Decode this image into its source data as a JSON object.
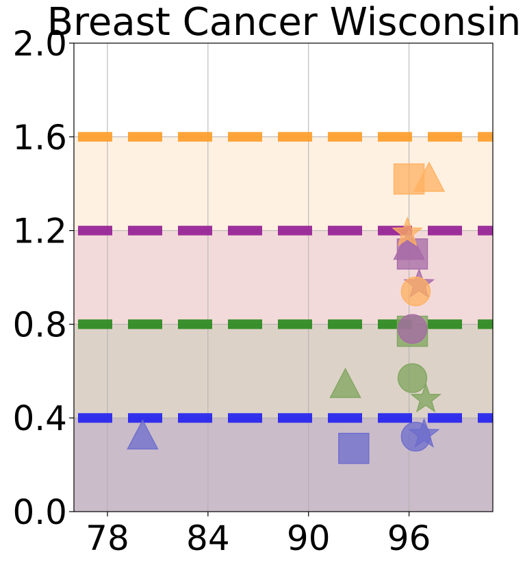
{
  "chart_data": {
    "type": "scatter",
    "title": "Breast Cancer Wisconsin",
    "xlabel": "",
    "ylabel": "",
    "xlim": [
      76,
      101
    ],
    "ylim": [
      0.0,
      2.0
    ],
    "x_ticks": [
      78,
      84,
      90,
      96
    ],
    "x_tick_labels": [
      "78",
      "84",
      "90",
      "96"
    ],
    "y_ticks": [
      0.0,
      0.4,
      0.8,
      1.2,
      1.6,
      2.0
    ],
    "y_tick_labels": [
      "0.0",
      "0.4",
      "0.8",
      "1.2",
      "1.6",
      "2.0"
    ],
    "grid": true,
    "bands": [
      {
        "y0": 0.0,
        "y1": 0.4,
        "color": "#cbbcca",
        "line_color": "#2424ee"
      },
      {
        "y0": 0.4,
        "y1": 0.8,
        "color": "#ddd2c8",
        "line_color": "#2b8a1e"
      },
      {
        "y0": 0.8,
        "y1": 1.2,
        "color": "#f3dada",
        "line_color": "#952095"
      },
      {
        "y0": 1.2,
        "y1": 1.6,
        "color": "#fef1e2",
        "line_color": "#ff9e2a"
      }
    ],
    "series": [
      {
        "color": "#6c6ccc",
        "points": [
          {
            "x": 80.1,
            "y": 0.32,
            "marker": "triangle"
          },
          {
            "x": 92.7,
            "y": 0.27,
            "marker": "square"
          },
          {
            "x": 96.4,
            "y": 0.32,
            "marker": "circle"
          },
          {
            "x": 96.9,
            "y": 0.33,
            "marker": "star"
          }
        ]
      },
      {
        "color": "#7ea45e",
        "points": [
          {
            "x": 92.2,
            "y": 0.54,
            "marker": "triangle"
          },
          {
            "x": 96.2,
            "y": 0.57,
            "marker": "circle"
          },
          {
            "x": 97.0,
            "y": 0.48,
            "marker": "star"
          },
          {
            "x": 96.2,
            "y": 0.77,
            "marker": "square"
          }
        ]
      },
      {
        "color": "#a668a6",
        "points": [
          {
            "x": 96.2,
            "y": 0.78,
            "marker": "circle"
          },
          {
            "x": 96.2,
            "y": 1.1,
            "marker": "square"
          },
          {
            "x": 96.0,
            "y": 1.13,
            "marker": "triangle"
          },
          {
            "x": 96.6,
            "y": 0.97,
            "marker": "star"
          }
        ]
      },
      {
        "color": "#ffb060",
        "points": [
          {
            "x": 96.0,
            "y": 1.42,
            "marker": "square"
          },
          {
            "x": 97.2,
            "y": 1.42,
            "marker": "triangle"
          },
          {
            "x": 95.9,
            "y": 1.19,
            "marker": "star"
          },
          {
            "x": 96.4,
            "y": 0.94,
            "marker": "circle"
          }
        ]
      }
    ]
  }
}
